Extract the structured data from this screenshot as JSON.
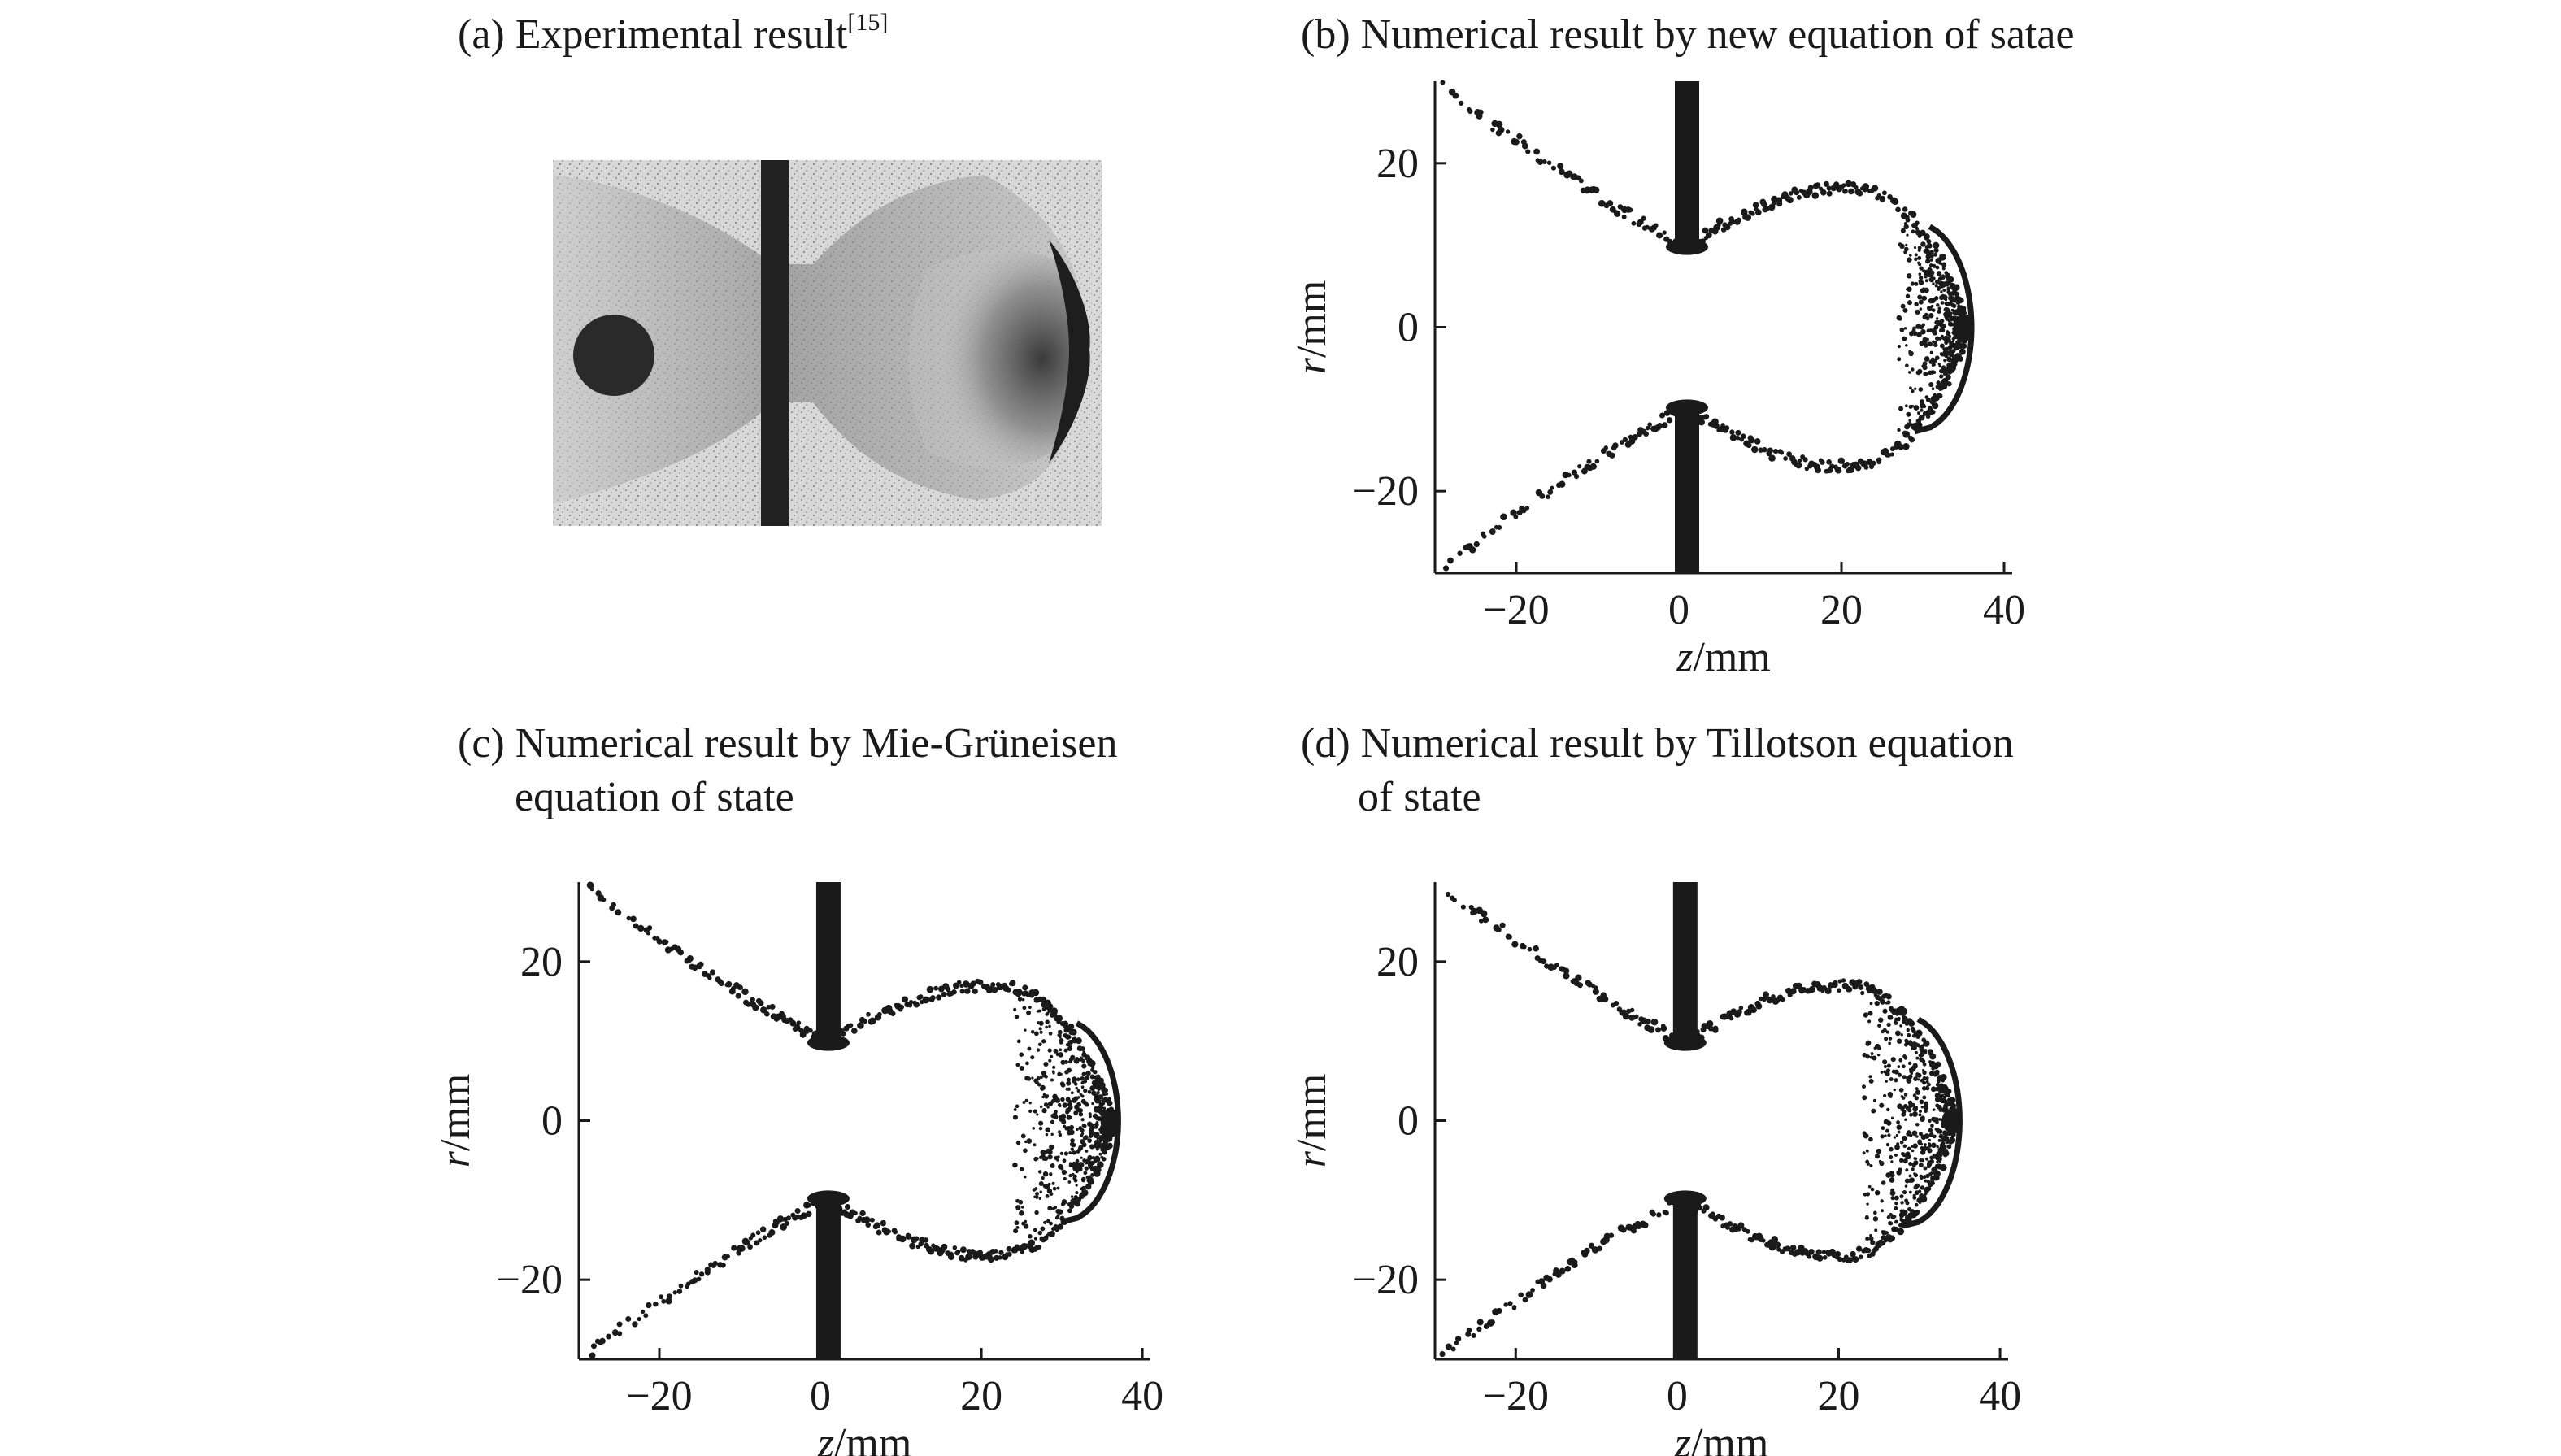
{
  "panels": [
    {
      "id": "a",
      "caption": "(a) Experimental result",
      "citation": "[15]"
    },
    {
      "id": "b",
      "caption": "(b) Numerical result by new equation of satae"
    },
    {
      "id": "c",
      "caption_line1": "(c) Numerical result by Mie-Grüneisen",
      "caption_line2": "equation of state"
    },
    {
      "id": "d",
      "caption_line1": "(d) Numerical result by Tillotson equation",
      "caption_line2": "of state"
    }
  ],
  "axes": {
    "xlabel_var": "z",
    "xlabel_unit": "/mm",
    "ylabel_var": "r",
    "ylabel_unit": "/mm",
    "xlim": [
      -30,
      41
    ],
    "ylim": [
      -30,
      30
    ],
    "xticks": [
      -20,
      0,
      20,
      40
    ],
    "yticks": [
      20,
      0,
      -20
    ],
    "xtick_labels": [
      "−20",
      "0",
      "20",
      "40"
    ],
    "ytick_labels": [
      "20",
      "0",
      "−20"
    ]
  },
  "chart_data": [
    {
      "type": "scatter",
      "panel": "b",
      "plate_z": 1,
      "hole_radius": 10,
      "cloud_max_radius": 17,
      "cloud_max_z": 20,
      "front_z": 36,
      "inner_front_z": 27
    },
    {
      "type": "scatter",
      "panel": "c",
      "plate_z": 1,
      "hole_radius": 10,
      "cloud_max_radius": 17,
      "cloud_max_z": 21,
      "front_z": 37,
      "inner_front_z": 24
    },
    {
      "type": "scatter",
      "panel": "d",
      "plate_z": 1,
      "hole_radius": 10,
      "cloud_max_radius": 17,
      "cloud_max_z": 20,
      "front_z": 35,
      "inner_front_z": 23
    }
  ],
  "colors": {
    "ink": "#1a1a1a",
    "photo_bg": "#cfcfcf",
    "photo_dark": "#2a2a2a"
  }
}
